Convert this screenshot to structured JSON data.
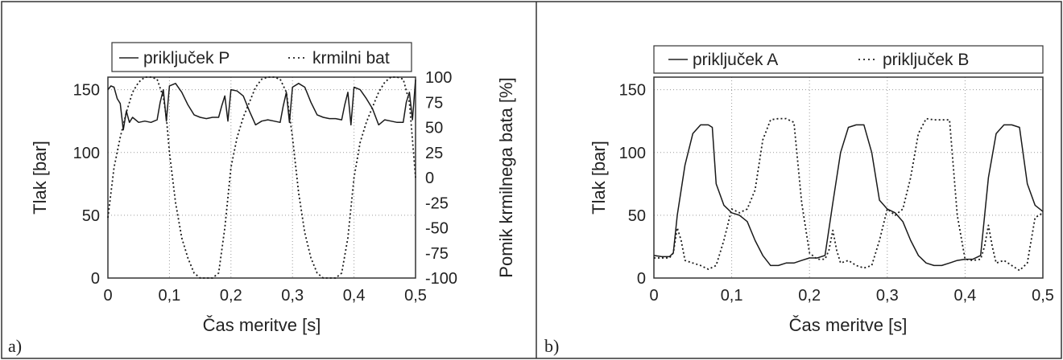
{
  "chart_data": [
    {
      "type": "line",
      "panel_label": "a)",
      "xlabel": "Čas meritve [s]",
      "ylabel": "Tlak [bar]",
      "y2label": "Pomik krmilnega bata [%]",
      "xlim": [
        0,
        0.5
      ],
      "ylim": [
        0,
        160
      ],
      "y2lim": [
        -100,
        100
      ],
      "x_ticks": [
        0,
        0.1,
        0.2,
        0.3,
        0.4,
        0.5
      ],
      "x_tick_labels": [
        "0",
        "0,1",
        "0,2",
        "0,3",
        "0,4",
        "0,5"
      ],
      "y_ticks": [
        0,
        50,
        100,
        150
      ],
      "y_tick_labels": [
        "0",
        "50",
        "100",
        "150"
      ],
      "y2_ticks": [
        100,
        75,
        50,
        25,
        0,
        -25,
        -50,
        -75,
        -100
      ],
      "y2_tick_labels": [
        "100",
        "75",
        "50",
        "25",
        "0",
        "-25",
        "-50",
        "-75",
        "-100"
      ],
      "grid": true,
      "legend_position": "top",
      "series": [
        {
          "name": "priključek P",
          "style": "solid",
          "axis": "left",
          "x": [
            0,
            0.005,
            0.01,
            0.015,
            0.02,
            0.025,
            0.03,
            0.035,
            0.04,
            0.05,
            0.06,
            0.07,
            0.08,
            0.085,
            0.09,
            0.095,
            0.1,
            0.11,
            0.12,
            0.13,
            0.14,
            0.15,
            0.16,
            0.17,
            0.18,
            0.185,
            0.19,
            0.195,
            0.2,
            0.21,
            0.22,
            0.23,
            0.24,
            0.25,
            0.26,
            0.27,
            0.28,
            0.285,
            0.29,
            0.295,
            0.3,
            0.31,
            0.32,
            0.33,
            0.34,
            0.35,
            0.36,
            0.37,
            0.38,
            0.385,
            0.39,
            0.395,
            0.4,
            0.41,
            0.42,
            0.43,
            0.44,
            0.45,
            0.46,
            0.47,
            0.48,
            0.485,
            0.49,
            0.495,
            0.5
          ],
          "y": [
            150,
            153,
            152,
            143,
            139,
            118,
            133,
            124,
            128,
            124,
            125,
            124,
            126,
            140,
            150,
            125,
            153,
            155,
            148,
            138,
            130,
            128,
            127,
            128,
            128,
            137,
            145,
            125,
            150,
            149,
            145,
            133,
            122,
            125,
            126,
            125,
            124,
            137,
            148,
            124,
            152,
            155,
            152,
            140,
            130,
            128,
            127,
            127,
            126,
            138,
            148,
            122,
            152,
            150,
            143,
            135,
            122,
            126,
            125,
            124,
            124,
            140,
            148,
            126,
            158
          ]
        },
        {
          "name": "krmilni bat",
          "style": "dotted",
          "axis": "right",
          "x": [
            0,
            0.01,
            0.02,
            0.03,
            0.04,
            0.05,
            0.06,
            0.07,
            0.08,
            0.09,
            0.095,
            0.1,
            0.11,
            0.12,
            0.13,
            0.14,
            0.15,
            0.16,
            0.17,
            0.18,
            0.19,
            0.2,
            0.21,
            0.22,
            0.23,
            0.24,
            0.25,
            0.26,
            0.27,
            0.28,
            0.29,
            0.3,
            0.31,
            0.32,
            0.33,
            0.34,
            0.35,
            0.36,
            0.37,
            0.38,
            0.39,
            0.4,
            0.41,
            0.42,
            0.43,
            0.44,
            0.45,
            0.46,
            0.47,
            0.48,
            0.49,
            0.5
          ],
          "y": [
            -40,
            10,
            40,
            65,
            85,
            95,
            100,
            100,
            98,
            80,
            60,
            25,
            -25,
            -60,
            -80,
            -95,
            -100,
            -100,
            -100,
            -95,
            -50,
            10,
            40,
            60,
            75,
            90,
            98,
            100,
            100,
            98,
            85,
            40,
            -15,
            -55,
            -80,
            -95,
            -100,
            -100,
            -100,
            -95,
            -60,
            0,
            35,
            55,
            70,
            85,
            95,
            100,
            100,
            98,
            75,
            0
          ]
        }
      ]
    },
    {
      "type": "line",
      "panel_label": "b)",
      "xlabel": "Čas meritve [s]",
      "ylabel": "Tlak [bar]",
      "xlim": [
        0,
        0.5
      ],
      "ylim": [
        0,
        160
      ],
      "x_ticks": [
        0,
        0.1,
        0.2,
        0.3,
        0.4,
        0.5
      ],
      "x_tick_labels": [
        "0",
        "0,1",
        "0,2",
        "0,3",
        "0,4",
        "0,5"
      ],
      "y_ticks": [
        0,
        50,
        100,
        150
      ],
      "y_tick_labels": [
        "0",
        "50",
        "100",
        "150"
      ],
      "grid": true,
      "legend_position": "top",
      "series": [
        {
          "name": "priključek A",
          "style": "solid",
          "x": [
            0,
            0.01,
            0.02,
            0.025,
            0.03,
            0.04,
            0.05,
            0.06,
            0.07,
            0.075,
            0.08,
            0.09,
            0.1,
            0.11,
            0.12,
            0.13,
            0.14,
            0.15,
            0.16,
            0.17,
            0.18,
            0.19,
            0.2,
            0.21,
            0.22,
            0.23,
            0.24,
            0.25,
            0.26,
            0.27,
            0.28,
            0.29,
            0.3,
            0.31,
            0.32,
            0.33,
            0.34,
            0.35,
            0.36,
            0.37,
            0.38,
            0.39,
            0.4,
            0.41,
            0.42,
            0.43,
            0.44,
            0.45,
            0.46,
            0.47,
            0.48,
            0.49,
            0.5
          ],
          "y": [
            18,
            17,
            17,
            20,
            50,
            90,
            115,
            122,
            122,
            120,
            75,
            58,
            52,
            50,
            45,
            30,
            18,
            10,
            10,
            12,
            12,
            14,
            16,
            16,
            18,
            60,
            100,
            120,
            122,
            122,
            100,
            62,
            55,
            52,
            45,
            30,
            18,
            12,
            10,
            10,
            12,
            14,
            15,
            15,
            18,
            80,
            115,
            122,
            122,
            120,
            75,
            58,
            53
          ]
        },
        {
          "name": "priključek B",
          "style": "dotted",
          "x": [
            0,
            0.01,
            0.02,
            0.025,
            0.03,
            0.035,
            0.04,
            0.05,
            0.06,
            0.07,
            0.08,
            0.09,
            0.1,
            0.11,
            0.12,
            0.13,
            0.14,
            0.15,
            0.16,
            0.17,
            0.18,
            0.19,
            0.2,
            0.21,
            0.22,
            0.225,
            0.23,
            0.235,
            0.24,
            0.25,
            0.26,
            0.27,
            0.28,
            0.29,
            0.3,
            0.31,
            0.32,
            0.33,
            0.34,
            0.35,
            0.36,
            0.37,
            0.38,
            0.39,
            0.4,
            0.41,
            0.42,
            0.425,
            0.43,
            0.435,
            0.44,
            0.45,
            0.46,
            0.47,
            0.48,
            0.49,
            0.5
          ],
          "y": [
            16,
            16,
            16,
            20,
            40,
            30,
            14,
            12,
            10,
            7,
            10,
            30,
            55,
            52,
            55,
            70,
            110,
            126,
            127,
            127,
            124,
            60,
            20,
            15,
            15,
            22,
            38,
            22,
            12,
            14,
            10,
            8,
            10,
            30,
            55,
            50,
            55,
            80,
            115,
            127,
            126,
            126,
            126,
            50,
            15,
            14,
            15,
            25,
            42,
            25,
            12,
            14,
            10,
            6,
            12,
            48,
            52
          ]
        }
      ]
    }
  ]
}
